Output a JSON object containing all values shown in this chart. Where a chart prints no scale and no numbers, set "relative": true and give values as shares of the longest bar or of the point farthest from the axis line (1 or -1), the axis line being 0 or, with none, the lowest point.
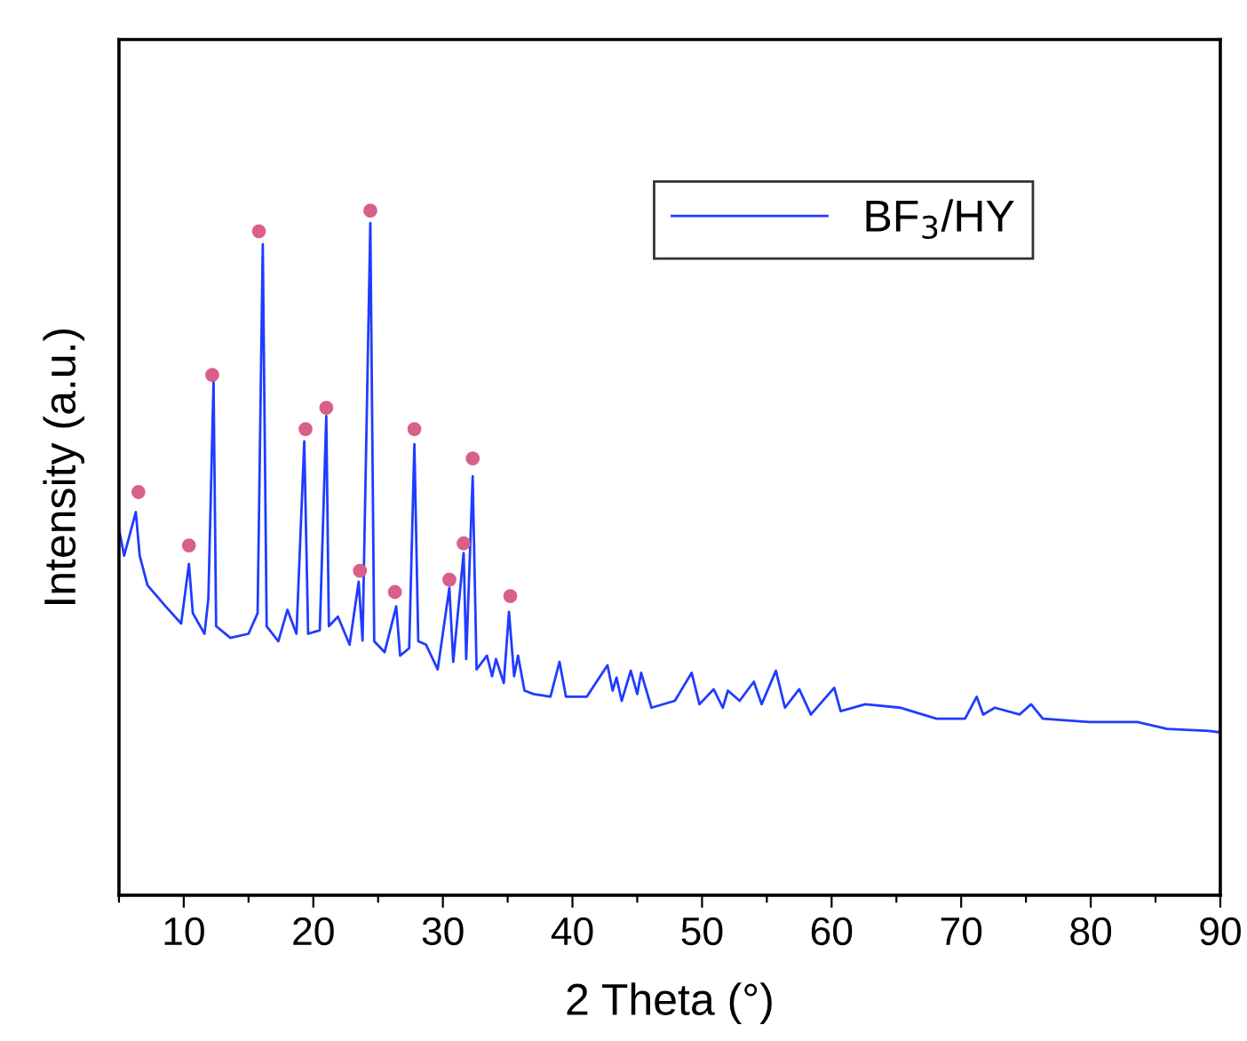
{
  "chart_data": {
    "type": "line",
    "relative": true,
    "xlabel": "2 Theta (°)",
    "ylabel": "Intensity (a.u.)",
    "xlim": [
      5,
      90
    ],
    "xticks": [
      {
        "value": 5,
        "label": null
      },
      10,
      {
        "value": 15,
        "label": null
      },
      20,
      {
        "value": 25,
        "label": null
      },
      30,
      {
        "value": 35,
        "label": null
      },
      40,
      {
        "value": 45,
        "label": null
      },
      50,
      {
        "value": 55,
        "label": null
      },
      60,
      {
        "value": 65,
        "label": null
      },
      70,
      {
        "value": 75,
        "label": null
      },
      80,
      {
        "value": 85,
        "label": null
      },
      90
    ],
    "tick_labels": "x",
    "legend": "top right",
    "grid": false,
    "series": [
      {
        "name": "BF$_{3}$/HY",
        "color": "#1f3cff",
        "marker": "none",
        "x": [
          5.0,
          5.4,
          6.3,
          6.6,
          7.2,
          8.6,
          9.8,
          10.4,
          10.7,
          11.6,
          11.9,
          12.3,
          12.5,
          13.6,
          15.0,
          15.7,
          16.1,
          16.4,
          17.3,
          18.0,
          18.7,
          19.3,
          19.6,
          20.5,
          21.0,
          21.2,
          21.9,
          22.8,
          23.5,
          23.8,
          24.4,
          24.7,
          25.5,
          26.4,
          26.7,
          27.4,
          27.8,
          28.1,
          28.7,
          29.6,
          30.5,
          30.8,
          31.6,
          31.8,
          32.3,
          32.6,
          33.4,
          33.8,
          34.1,
          34.7,
          35.1,
          35.5,
          35.8,
          36.3,
          37.0,
          38.3,
          39.0,
          39.5,
          41.1,
          42.7,
          43.1,
          43.4,
          43.8,
          44.5,
          45.0,
          45.3,
          46.1,
          47.9,
          49.2,
          49.8,
          50.9,
          51.6,
          52.0,
          52.9,
          54.0,
          54.6,
          55.7,
          56.4,
          57.5,
          58.4,
          60.2,
          60.7,
          62.6,
          65.3,
          68.1,
          70.3,
          71.2,
          71.7,
          72.6,
          74.5,
          75.4,
          76.3,
          79.9,
          83.6,
          85.9,
          89.1,
          90.0
        ],
        "values": [
          0.535,
          0.496,
          0.56,
          0.496,
          0.453,
          0.422,
          0.397,
          0.484,
          0.412,
          0.382,
          0.433,
          0.751,
          0.393,
          0.376,
          0.382,
          0.412,
          0.951,
          0.393,
          0.371,
          0.417,
          0.382,
          0.663,
          0.382,
          0.387,
          0.7,
          0.393,
          0.407,
          0.366,
          0.458,
          0.372,
          0.982,
          0.371,
          0.355,
          0.422,
          0.35,
          0.361,
          0.659,
          0.371,
          0.366,
          0.33,
          0.449,
          0.341,
          0.5,
          0.345,
          0.612,
          0.33,
          0.35,
          0.32,
          0.345,
          0.31,
          0.414,
          0.32,
          0.35,
          0.299,
          0.294,
          0.29,
          0.341,
          0.29,
          0.29,
          0.336,
          0.299,
          0.318,
          0.284,
          0.328,
          0.294,
          0.325,
          0.274,
          0.284,
          0.325,
          0.279,
          0.301,
          0.274,
          0.299,
          0.284,
          0.312,
          0.279,
          0.328,
          0.274,
          0.301,
          0.264,
          0.303,
          0.269,
          0.279,
          0.274,
          0.258,
          0.258,
          0.29,
          0.264,
          0.274,
          0.264,
          0.279,
          0.258,
          0.253,
          0.253,
          0.243,
          0.24,
          0.238
        ]
      },
      {
        "type": "scatter",
        "color": "#d9608a",
        "marker": "circle",
        "x": [
          6.5,
          10.4,
          12.2,
          15.8,
          19.4,
          21.0,
          23.6,
          24.4,
          26.3,
          27.8,
          30.5,
          31.6,
          32.3,
          35.2
        ],
        "values": [
          0.589,
          0.511,
          0.76,
          0.97,
          0.681,
          0.712,
          0.474,
          1.0,
          0.443,
          0.681,
          0.461,
          0.514,
          0.638,
          0.437
        ]
      }
    ]
  }
}
